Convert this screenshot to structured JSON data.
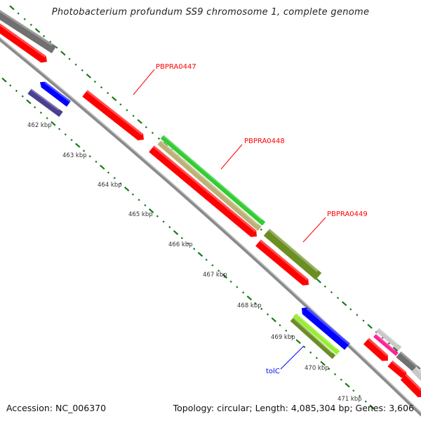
{
  "title": "Photobacterium profundum SS9 chromosome 1, complete genome",
  "footer": {
    "accession": "Accession: NC_006370",
    "topology": "Topology: circular; Length: 4,085,304 bp; Genes: 3,606"
  },
  "scale_labels": [
    "462 kbp",
    "463 kbp",
    "464 kbp",
    "465 kbp",
    "466 kbp",
    "467 kbp",
    "468 kbp",
    "469 kbp",
    "470 kbp",
    "471 kbp"
  ],
  "gene_labels": [
    {
      "text": "PBPRA0447",
      "color": "#ff0000"
    },
    {
      "text": "PBPRA0448",
      "color": "#ff0000"
    },
    {
      "text": "PBPRA0449",
      "color": "#ff0000"
    },
    {
      "text": "tolC",
      "color": "#0000ff"
    }
  ],
  "colors": {
    "backbone": "#8a8a8a",
    "tick": "#1a7a1a",
    "red": "#ff0000",
    "blue": "#0000ff",
    "green": "#33cc33",
    "tan": "#bdb178",
    "olive": "#6b8e23",
    "lime": "#99ee33",
    "purple": "#4a3f90",
    "gray": "#707070",
    "pink": "#ff2299",
    "lightgray": "#c8c8c8"
  }
}
